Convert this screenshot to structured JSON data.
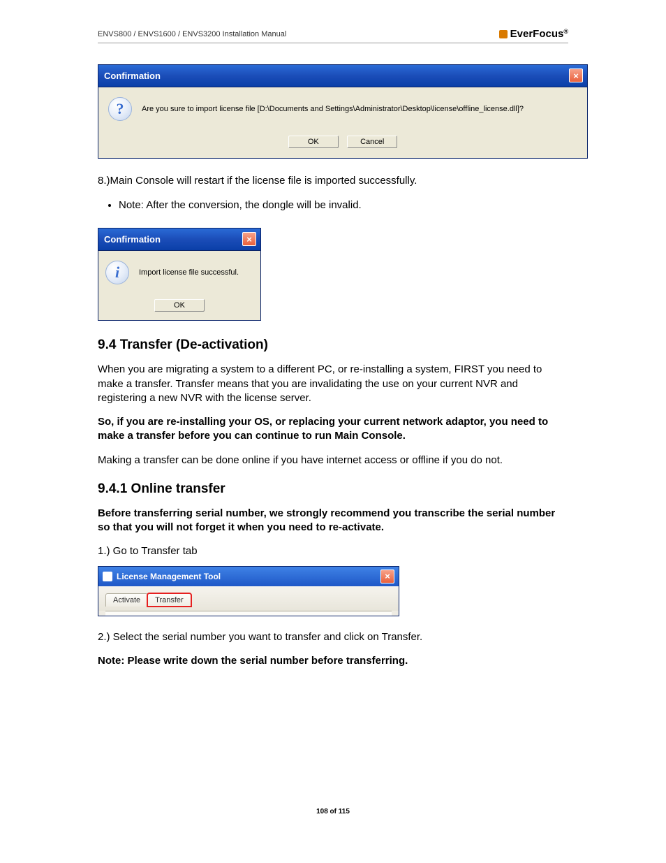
{
  "header": {
    "left": "ENVS800 / ENVS1600 / ENVS3200 Installation Manual",
    "brand_prefix": "Ever",
    "brand_suffix": "Focus"
  },
  "dialog1": {
    "title": "Confirmation",
    "message": "Are you sure to import license file [D:\\Documents and Settings\\Administrator\\Desktop\\license\\offline_license.dll]?",
    "ok": "OK",
    "cancel": "Cancel"
  },
  "text1": "8.)Main Console will restart if the license file is imported successfully.",
  "note1": "Note: After the conversion, the dongle will be invalid.",
  "dialog2": {
    "title": "Confirmation",
    "message": "Import license file successful.",
    "ok": "OK"
  },
  "section94": "9.4   Transfer (De-activation)",
  "para94_1": "When you are migrating a system to a different PC, or re-installing a system, FIRST you need to make a transfer. Transfer means that you are invalidating the use on your current NVR and registering a new NVR with the license server.",
  "para94_bold": "So, if you are re-installing your OS, or replacing your current network adaptor, you need to make a transfer before you can continue to run Main Console.",
  "para94_2": "Making a transfer can be done online if you have internet access or offline if you do not.",
  "section941": "9.4.1 Online transfer",
  "para941_bold": "Before transferring serial number, we strongly recommend you transcribe the serial number so that you will not forget it when you need to re-activate.",
  "step1": "1.) Go to Transfer tab",
  "lic": {
    "title": "License Management Tool",
    "tab_activate": "Activate",
    "tab_transfer": "Transfer"
  },
  "step2": "2.) Select the serial number you want to transfer and click on Transfer.",
  "note2": "Note: Please write down the serial number before transferring",
  "footer": "108 of 115"
}
